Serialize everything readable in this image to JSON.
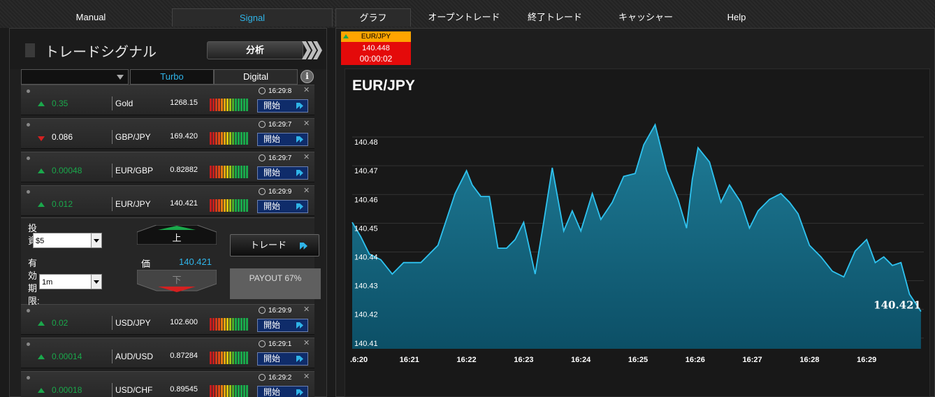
{
  "nav": {
    "manual": "Manual",
    "signal": "Signal",
    "graph": "グラフ",
    "open_trade": "オープントレード",
    "closed_trade": "終了トレード",
    "cashier": "キャッシャー",
    "help": "Help"
  },
  "signals": {
    "title": "トレードシグナル",
    "analyze_label": "分析",
    "tabs": {
      "turbo": "Turbo",
      "digital": "Digital"
    },
    "start_label": "開始",
    "rows": [
      {
        "direction": "up",
        "change": "0.35",
        "asset": "Gold",
        "price": "1268.15",
        "time": "16:29:8"
      },
      {
        "direction": "down",
        "change": "0.086",
        "asset": "GBP/JPY",
        "price": "169.420",
        "time": "16:29:7"
      },
      {
        "direction": "up",
        "change": "0.00048",
        "asset": "EUR/GBP",
        "price": "0.82882",
        "time": "16:29:7"
      },
      {
        "direction": "up",
        "change": "0.012",
        "asset": "EUR/JPY",
        "price": "140.421",
        "time": "16:29:9"
      },
      {
        "direction": "up",
        "change": "0.02",
        "asset": "USD/JPY",
        "price": "102.600",
        "time": "16:29:9"
      },
      {
        "direction": "up",
        "change": "0.00014",
        "asset": "AUD/USD",
        "price": "0.87284",
        "time": "16:29:1"
      },
      {
        "direction": "up",
        "change": "0.00018",
        "asset": "USD/CHF",
        "price": "0.89545",
        "time": "16:29:2"
      }
    ],
    "trade": {
      "invest_label": "投資:",
      "invest_value": "$5",
      "expiry_label": "有効期限:",
      "expiry_value": "1m",
      "up_label": "上",
      "down_label": "下",
      "price_label": "価",
      "price_value": "140.421",
      "trade_button": "トレード",
      "payout": "PAYOUT 67%"
    }
  },
  "badge": {
    "symbol": "EUR/JPY",
    "price": "140.448",
    "timer": "00:00:02"
  },
  "colors": {
    "accent": "#2fb4e8",
    "up": "#1aa84b",
    "down": "#d42020",
    "series": "#2fc3f0",
    "badge_top": "#ffa400",
    "badge_bottom": "#e40a0a"
  },
  "chart_data": {
    "type": "area",
    "title": "EUR/JPY",
    "xlabel": "",
    "ylabel": "",
    "y_ticks": [
      140.41,
      140.42,
      140.43,
      140.44,
      140.45,
      140.46,
      140.47,
      140.48
    ],
    "x_ticks": [
      ".6:20",
      "16:21",
      "16:22",
      "16:23",
      "16:24",
      "16:25",
      "16:26",
      "16:27",
      "16:28",
      "16:29"
    ],
    "ylim": [
      140.408,
      140.4895
    ],
    "xlim": [
      0,
      10
    ],
    "last_value_label": "140.421",
    "grid": true,
    "x": [
      0,
      0.15,
      0.3,
      0.5,
      0.7,
      0.9,
      1.2,
      1.5,
      1.8,
      2.0,
      2.1,
      2.25,
      2.4,
      2.55,
      2.7,
      2.85,
      3.0,
      3.2,
      3.35,
      3.5,
      3.7,
      3.85,
      4.0,
      4.2,
      4.35,
      4.55,
      4.75,
      4.95,
      5.1,
      5.3,
      5.5,
      5.7,
      5.85,
      5.95,
      6.05,
      6.25,
      6.45,
      6.6,
      6.8,
      6.95,
      7.1,
      7.3,
      7.5,
      7.65,
      7.8,
      8.0,
      8.2,
      8.4,
      8.6,
      8.8,
      9.0,
      9.15,
      9.3,
      9.45,
      9.6,
      9.75,
      9.95
    ],
    "y": [
      140.452,
      140.447,
      140.441,
      140.439,
      140.434,
      140.438,
      140.438,
      140.444,
      140.462,
      140.47,
      140.465,
      140.461,
      140.461,
      140.443,
      140.443,
      140.446,
      140.452,
      140.434,
      140.452,
      140.471,
      140.449,
      140.456,
      140.449,
      140.462,
      140.453,
      140.459,
      140.468,
      140.469,
      140.479,
      140.486,
      140.47,
      140.46,
      140.45,
      140.467,
      140.478,
      140.473,
      140.459,
      140.465,
      140.459,
      140.45,
      140.456,
      140.46,
      140.462,
      140.459,
      140.455,
      140.444,
      140.44,
      140.435,
      140.433,
      140.442,
      140.446,
      140.438,
      140.44,
      140.437,
      140.438,
      140.427,
      140.421
    ]
  }
}
